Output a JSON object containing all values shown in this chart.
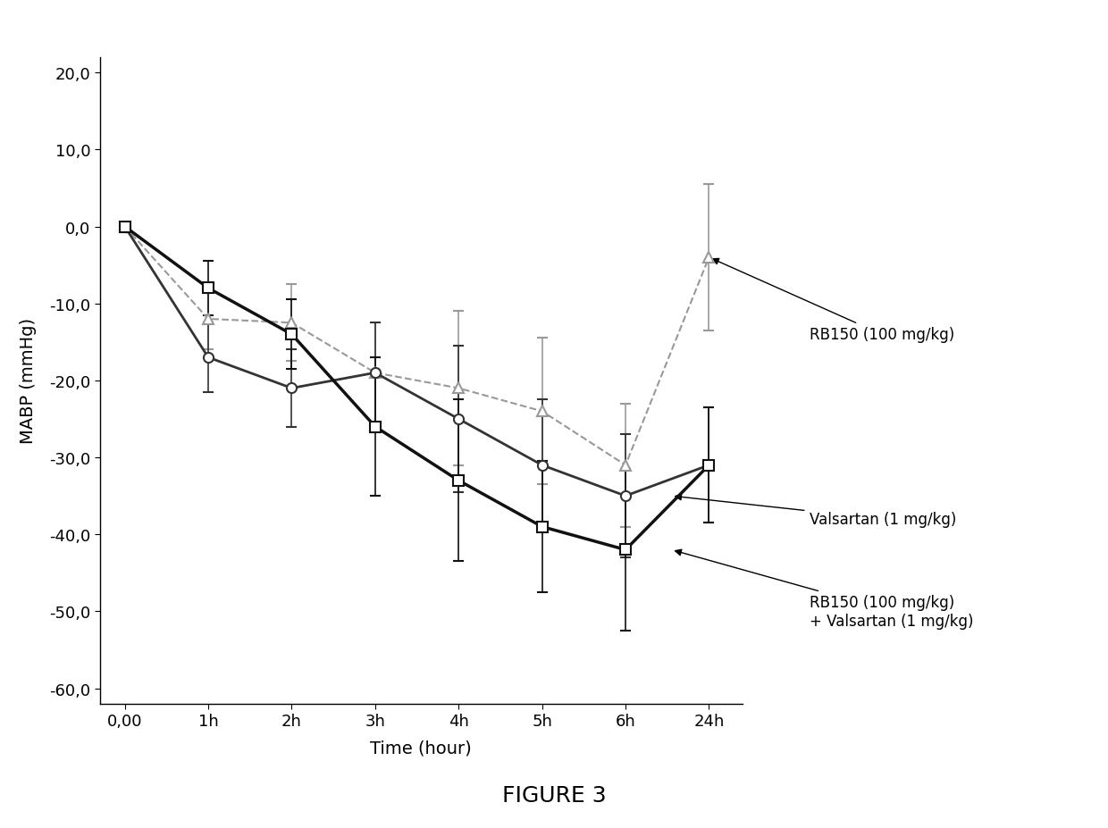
{
  "x_positions": [
    0,
    1,
    2,
    3,
    4,
    5,
    6,
    7
  ],
  "x_labels": [
    "0,00",
    "1h",
    "2h",
    "3h",
    "4h",
    "5h",
    "6h",
    "24h"
  ],
  "series": [
    {
      "name": "RB150 (100 mg/kg)",
      "y": [
        0,
        -12.0,
        -12.5,
        -19.0,
        -21.0,
        -24.0,
        -31.0,
        -4.0
      ],
      "yerr": [
        0.5,
        4.0,
        5.0,
        6.5,
        10.0,
        9.5,
        8.0,
        9.5
      ],
      "color": "#999999",
      "marker": "^",
      "linestyle": "--",
      "linewidth": 1.5,
      "markersize": 8,
      "markerfacecolor": "white"
    },
    {
      "name": "Valsartan (1 mg/kg)",
      "y": [
        0,
        -17.0,
        -21.0,
        -19.0,
        -25.0,
        -31.0,
        -35.0,
        -31.0
      ],
      "yerr": [
        0.5,
        4.5,
        5.0,
        6.5,
        9.5,
        8.5,
        8.0,
        7.5
      ],
      "color": "#333333",
      "marker": "o",
      "linestyle": "-",
      "linewidth": 2.0,
      "markersize": 8,
      "markerfacecolor": "white"
    },
    {
      "name": "RB150 (100 mg/kg) + Valsartan (1 mg/kg)",
      "y": [
        0,
        -8.0,
        -14.0,
        -26.0,
        -33.0,
        -39.0,
        -42.0,
        -31.0
      ],
      "yerr": [
        0.5,
        3.5,
        4.5,
        9.0,
        10.5,
        8.5,
        10.5,
        7.5
      ],
      "color": "#111111",
      "marker": "s",
      "linestyle": "-",
      "linewidth": 2.5,
      "markersize": 8,
      "markerfacecolor": "white"
    }
  ],
  "ylabel": "MABP (mmHg)",
  "xlabel": "Time (hour)",
  "ylim": [
    -62,
    22
  ],
  "yticks": [
    20.0,
    10.0,
    0.0,
    -10.0,
    -20.0,
    -30.0,
    -40.0,
    -50.0,
    -60.0
  ],
  "figure_title": "FIGURE 3",
  "background_color": "#ffffff"
}
